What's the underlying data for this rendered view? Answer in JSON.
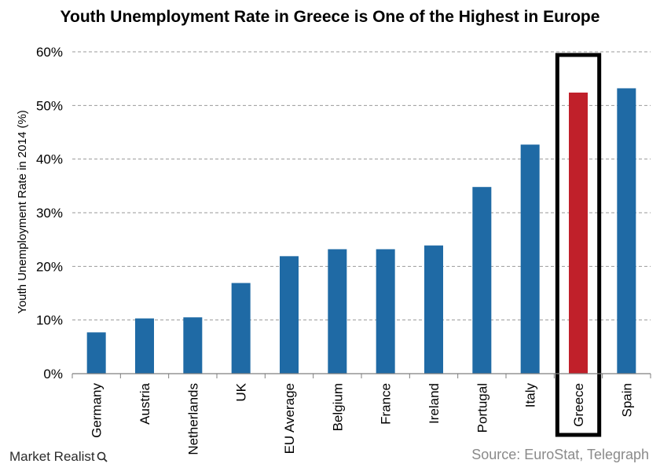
{
  "chart_data": {
    "type": "bar",
    "title": "Youth Unemployment Rate in Greece is One of the Highest in Europe",
    "ylabel": "Youth Unemployment Rate in 2014 (%)",
    "xlabel": "",
    "categories": [
      "Germany",
      "Austria",
      "Netherlands",
      "UK",
      "EU Average",
      "Belgium",
      "France",
      "Ireland",
      "Portugal",
      "Italy",
      "Greece",
      "Spain"
    ],
    "values": [
      7.7,
      10.3,
      10.5,
      16.9,
      21.9,
      23.2,
      23.2,
      23.9,
      34.8,
      42.7,
      52.4,
      53.2
    ],
    "ylim": [
      0,
      60
    ],
    "yticks": [
      0,
      10,
      20,
      30,
      40,
      50,
      60
    ],
    "ytick_labels": [
      "0%",
      "10%",
      "20%",
      "30%",
      "40%",
      "50%",
      "60%"
    ],
    "grid": true,
    "highlight": "Greece",
    "colors": {
      "bar": "#1f6aa5",
      "highlight": "#c0202a",
      "grid": "#9a9a9a",
      "highlight_box": "#000000"
    }
  },
  "source": "Source: EuroStat, Telegraph",
  "brand": "Market Realist"
}
